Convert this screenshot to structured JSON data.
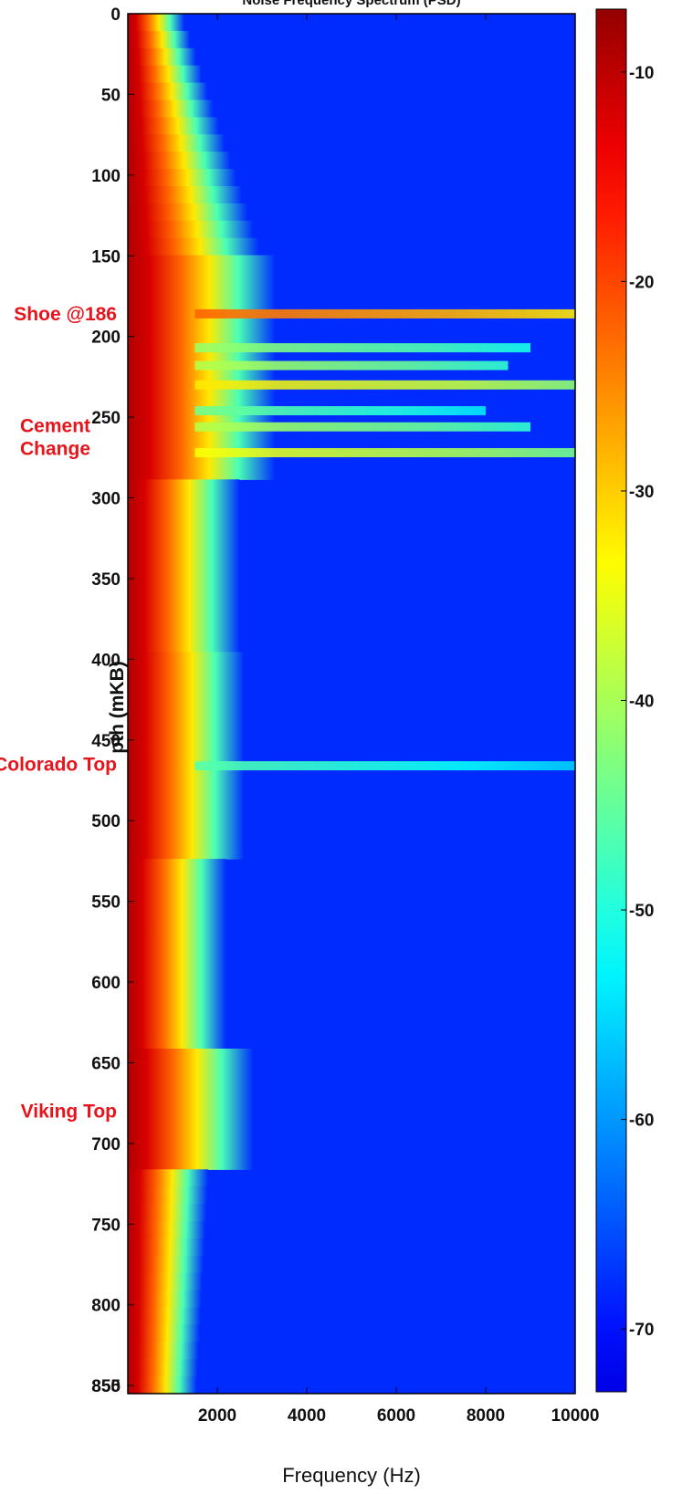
{
  "chart_data": {
    "type": "heatmap",
    "title": "Noise Frequency Spectrum (PSD)",
    "xlabel": "Frequency (Hz)",
    "ylabel_visible": "pth (mKB)",
    "xlim": [
      0,
      10000
    ],
    "ylim": [
      0,
      855
    ],
    "x_ticks": [
      2000,
      4000,
      6000,
      8000,
      10000
    ],
    "y_ticks": [
      0,
      50,
      100,
      150,
      200,
      250,
      300,
      350,
      400,
      450,
      500,
      550,
      600,
      650,
      700,
      750,
      800,
      850
    ],
    "y_extra_tick": 855,
    "colorbar": {
      "range": [
        -73,
        -7
      ],
      "ticks": [
        -10,
        -20,
        -30,
        -40,
        -50,
        -60,
        -70
      ],
      "colormap": "jet"
    },
    "annotations": [
      {
        "text": "Shoe @186",
        "depth": 186
      },
      {
        "text": "Cement\nChange",
        "depth": 262
      },
      {
        "text": "Colorado Top",
        "depth": 465
      },
      {
        "text": "Viking Top",
        "depth": 680
      }
    ],
    "annotation_color": "#e8141b",
    "bands": [
      {
        "depth": 186,
        "reach": 10000,
        "level": -28
      },
      {
        "depth": 207,
        "reach": 9000,
        "level": -47
      },
      {
        "depth": 218,
        "reach": 8500,
        "level": -45
      },
      {
        "depth": 230,
        "reach": 10000,
        "level": -38
      },
      {
        "depth": 246,
        "reach": 8000,
        "level": -50
      },
      {
        "depth": 256,
        "reach": 9000,
        "level": -45
      },
      {
        "depth": 272,
        "reach": 10000,
        "level": -40
      },
      {
        "depth": 466,
        "reach": 10000,
        "level": -52
      }
    ]
  }
}
